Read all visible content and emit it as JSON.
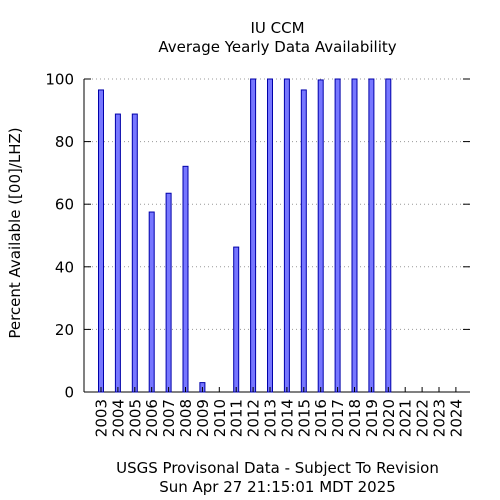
{
  "chart_data": {
    "type": "bar",
    "title": "IU CCM",
    "subtitle": "Average Yearly Data Availability",
    "ylabel": "Percent Available ([00]/LHZ)",
    "xlabel": "",
    "footer": [
      "USGS Provisonal Data - Subject To Revision",
      "Sun Apr 27 21:15:01 MDT 2025"
    ],
    "ylim": [
      0,
      100
    ],
    "yticks": [
      0,
      20,
      40,
      60,
      80,
      100
    ],
    "grid": "horizontal dotted",
    "bar_color": "#7777ff",
    "bar_edge_color": "#0000aa",
    "categories": [
      "2003",
      "2004",
      "2005",
      "2006",
      "2007",
      "2008",
      "2009",
      "2010",
      "2011",
      "2012",
      "2013",
      "2014",
      "2015",
      "2016",
      "2017",
      "2018",
      "2019",
      "2020",
      "2021",
      "2022",
      "2023",
      "2024"
    ],
    "values": [
      96.5,
      88.8,
      88.8,
      57.5,
      63.5,
      72.1,
      3.0,
      0,
      46.3,
      100,
      100,
      100,
      96.5,
      99.7,
      100,
      100,
      100,
      100,
      0,
      0,
      0,
      0
    ]
  }
}
